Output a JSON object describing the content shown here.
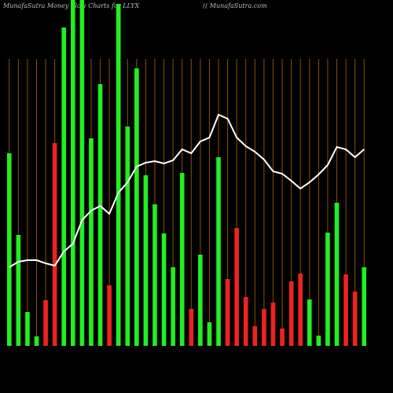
{
  "chart_data": {
    "type": "bar",
    "title": "MunafaSutra  Money Flow  Charts for LLYX",
    "subtitle": "(( MunafaSutra.com",
    "categories": [
      null,
      null,
      null,
      null,
      null,
      null,
      null,
      null,
      null,
      null,
      null,
      null,
      null,
      null,
      null,
      null,
      null,
      null,
      null,
      null,
      null,
      null,
      null,
      null,
      null,
      null,
      null,
      null,
      null,
      null,
      null,
      null,
      null,
      null,
      null,
      null,
      null,
      null,
      null,
      null
    ],
    "values": [
      245,
      141,
      43,
      12,
      58,
      258,
      405,
      440,
      440,
      264,
      333,
      77,
      435,
      279,
      353,
      217,
      180,
      143,
      100,
      220,
      47,
      116,
      30,
      240,
      85,
      150,
      62,
      25,
      47,
      55,
      22,
      82,
      92,
      59,
      13,
      144,
      182,
      91,
      69,
      100
    ],
    "bar_colors": [
      "#22ee22",
      "#22ee22",
      "#22ee22",
      "#22ee22",
      "#ee2222",
      "#ee2222",
      "#22ee22",
      "#22ee22",
      "#22ee22",
      "#22ee22",
      "#22ee22",
      "#ee2222",
      "#22ee22",
      "#22ee22",
      "#22ee22",
      "#22ee22",
      "#22ee22",
      "#22ee22",
      "#22ee22",
      "#22ee22",
      "#ee2222",
      "#22ee22",
      "#22ee22",
      "#22ee22",
      "#ee2222",
      "#ee2222",
      "#ee2222",
      "#ee2222",
      "#ee2222",
      "#ee2222",
      "#ee2222",
      "#ee2222",
      "#ee2222",
      "#22ee22",
      "#22ee22",
      "#22ee22",
      "#22ee22",
      "#ee2222",
      "#ee2222",
      "#22ee22"
    ],
    "line": {
      "color": "#ffffff",
      "values": [
        100,
        107,
        109,
        109,
        105,
        102,
        120,
        130,
        160,
        172,
        178,
        168,
        195,
        208,
        228,
        233,
        235,
        232,
        236,
        250,
        245,
        260,
        265,
        294,
        289,
        265,
        254,
        247,
        237,
        222,
        219,
        210,
        200,
        208,
        218,
        230,
        253,
        250,
        240,
        250
      ]
    },
    "ylim": [
      0,
      440
    ],
    "grid_color": "#8a5200",
    "background": "#000000"
  }
}
